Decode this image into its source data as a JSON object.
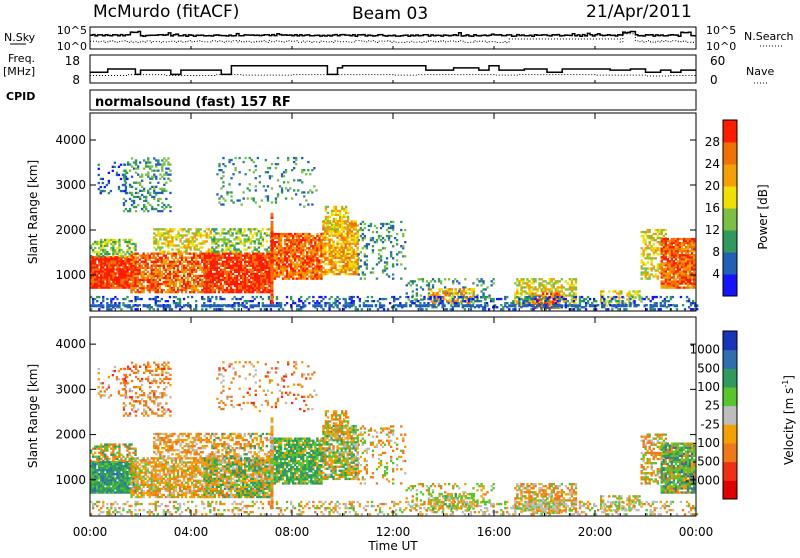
{
  "header": {
    "station": "McMurdo (fitACF)",
    "beam": "Beam 03",
    "date": "21/Apr/2011"
  },
  "noise_panel": {
    "left_label": "N.Sky",
    "left_ticks": [
      "10^5",
      "10^0"
    ],
    "right_label": "N.Search",
    "right_ticks": [
      "10^5",
      "10^0"
    ]
  },
  "freq_panel": {
    "left_label_line1": "Freq.",
    "left_label_line2": "[MHz]",
    "left_ticks": [
      "18",
      "8"
    ],
    "right_label": "Nave",
    "right_ticks": [
      "60",
      "0"
    ]
  },
  "cpid_panel": {
    "label": "CPID",
    "program": "normalsound (fast) 157 RF"
  },
  "chart_data": [
    {
      "type": "heatmap",
      "name": "power",
      "ylabel": "Slant Range [km]",
      "ylim": [
        200,
        4600
      ],
      "yticks": [
        "1000",
        "2000",
        "3000",
        "4000"
      ],
      "xlim": [
        0,
        24
      ],
      "colorbar": {
        "label": "Power [dB]",
        "ticks": [
          "4",
          "8",
          "12",
          "16",
          "20",
          "24",
          "28"
        ],
        "range": [
          0,
          32
        ],
        "colors": [
          "#1414ff",
          "#2060b8",
          "#2f9a5e",
          "#7ac143",
          "#f0e000",
          "#f5a000",
          "#f07000",
          "#ff1a00"
        ]
      }
    },
    {
      "type": "heatmap",
      "name": "velocity",
      "ylabel": "Slant Range [km]",
      "ylim": [
        200,
        4600
      ],
      "yticks": [
        "1000",
        "2000",
        "3000",
        "4000"
      ],
      "xlabel": "Time UT",
      "xticks": [
        "00:00",
        "04:00",
        "08:00",
        "12:00",
        "16:00",
        "20:00",
        "00:00"
      ],
      "xlim": [
        0,
        24
      ],
      "colorbar": {
        "label": "Velocity [m s",
        "label_sup": "-1",
        "label_end": "]",
        "ticks": [
          "1000",
          "500",
          "100",
          "25",
          "-25",
          "-100",
          "-500",
          "-1000"
        ],
        "colors": [
          "#1a35b8",
          "#2f6fb0",
          "#2f9a5e",
          "#56c72a",
          "#bdbdbd",
          "#f5a000",
          "#f07818",
          "#f03010",
          "#e00000"
        ]
      }
    }
  ]
}
